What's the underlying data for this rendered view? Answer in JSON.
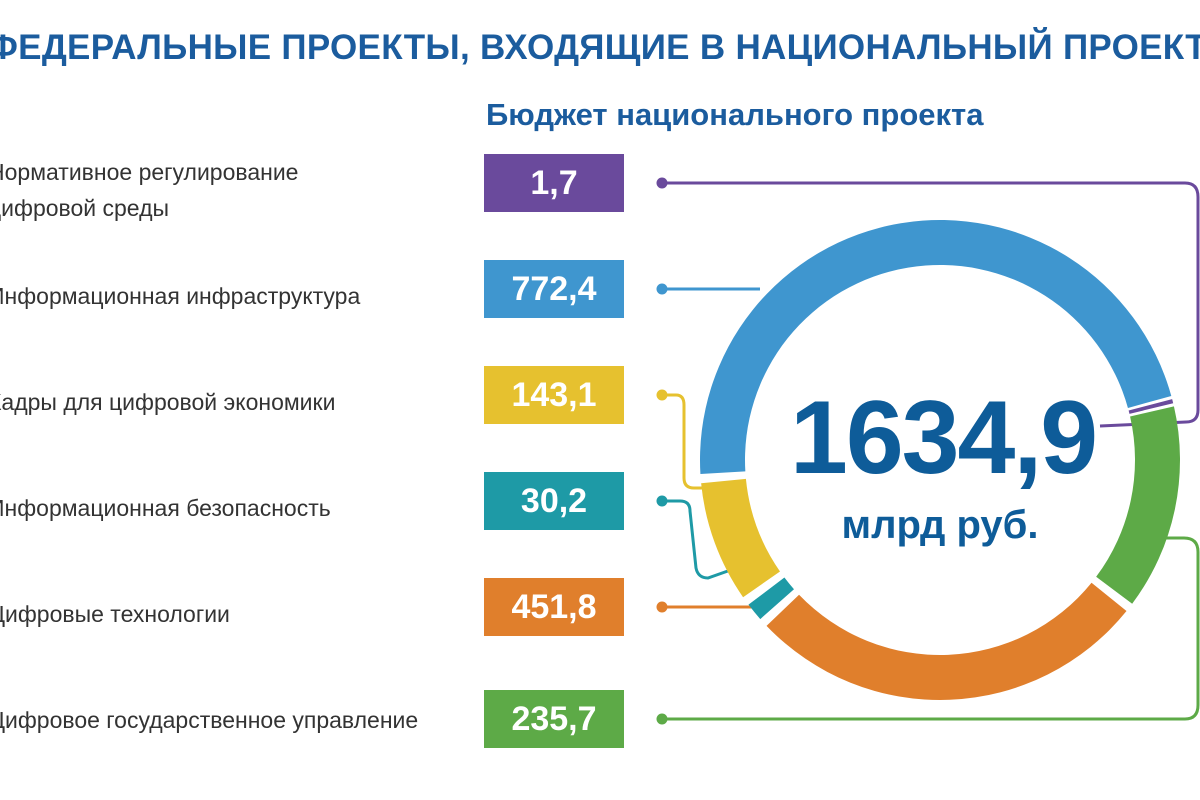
{
  "header": {
    "title": "ФЕДЕРАЛЬНЫЕ ПРОЕКТЫ, ВХОДЯЩИЕ В НАЦИОНАЛЬНЫЙ ПРОЕКТ:",
    "subtitle": "Бюджет национального проекта"
  },
  "total": {
    "value": "1634,9",
    "unit": "млрд руб."
  },
  "projects": [
    {
      "label": "Нормативное регулирование\nцифровой среды",
      "value_text": "1,7",
      "color": "#6a4a9c"
    },
    {
      "label": "Информационная инфраструктура",
      "value_text": "772,4",
      "color": "#3f96cf"
    },
    {
      "label": "Кадры для цифровой экономики",
      "value_text": "143,1",
      "color": "#e6c12f"
    },
    {
      "label": "Информационная безопасность",
      "value_text": "30,2",
      "color": "#1e9aa6"
    },
    {
      "label": "Цифровые технологии",
      "value_text": "451,8",
      "color": "#e07f2c"
    },
    {
      "label": "Цифровое государственное управление",
      "value_text": "235,7",
      "color": "#5daa47"
    }
  ],
  "chart_data": {
    "type": "pie",
    "title": "Бюджет национального проекта",
    "categories": [
      "Нормативное регулирование цифровой среды",
      "Информационная инфраструктура",
      "Кадры для цифровой экономики",
      "Информационная безопасность",
      "Цифровые технологии",
      "Цифровое государственное управление"
    ],
    "values": [
      1.7,
      772.4,
      143.1,
      30.2,
      451.8,
      235.7
    ],
    "colors": [
      "#6a4a9c",
      "#3f96cf",
      "#e6c12f",
      "#1e9aa6",
      "#e07f2c",
      "#5daa47"
    ],
    "total": 1634.9,
    "unit": "млрд руб."
  }
}
